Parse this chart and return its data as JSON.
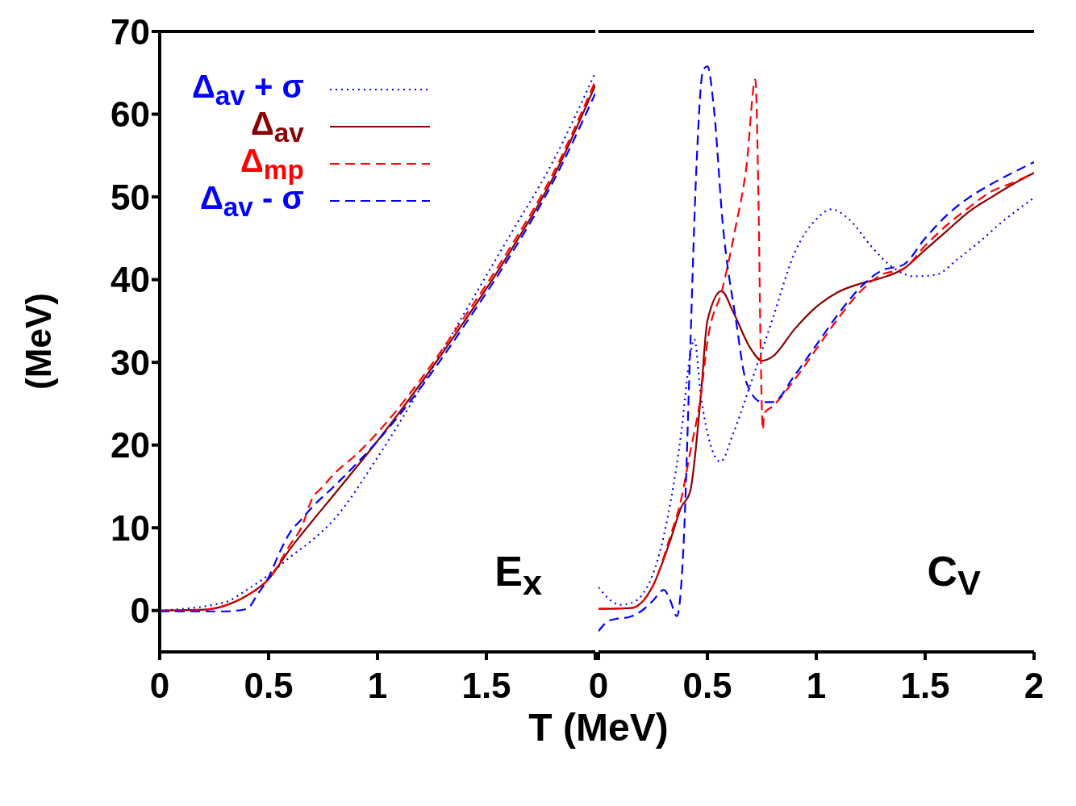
{
  "chart_data": [
    {
      "type": "line",
      "ylabel": "(MeV)",
      "xlabel": "T (MeV)",
      "xlim": [
        0,
        2
      ],
      "xticks": [
        0,
        0.5,
        1,
        1.5,
        {
          "value": 2,
          "label": null
        }
      ],
      "ylim": [
        -5,
        70
      ],
      "yticks": [
        0,
        10,
        20,
        30,
        40,
        50,
        60,
        70
      ],
      "legend": "top left",
      "marker": "none",
      "annotations": [
        "E$_{x}$"
      ],
      "series": [
        {
          "name": "Δ$_{av}$ + σ",
          "color": "#0000ff",
          "line_style": "dotted",
          "x": [
            0,
            0.3,
            0.4,
            0.5,
            0.6,
            0.7,
            0.8,
            1.0,
            1.2,
            1.4,
            1.6,
            1.8,
            2.0
          ],
          "values": [
            0,
            1.0,
            2.5,
            4.3,
            6.5,
            8.5,
            11,
            18.5,
            27,
            36,
            45,
            54,
            65
          ]
        },
        {
          "name": "Δ$_{av}$",
          "color": "#8b0000",
          "line_style": "solid",
          "x": [
            0,
            0.2,
            0.3,
            0.4,
            0.5,
            0.6,
            0.7,
            0.8,
            1.0,
            1.2,
            1.4,
            1.6,
            1.8,
            2.0
          ],
          "values": [
            0,
            0.1,
            0.6,
            1.8,
            3.8,
            7.5,
            10.8,
            14,
            20.5,
            27.5,
            35,
            43,
            52,
            63.5
          ]
        },
        {
          "name": "Δ$_{mp}$",
          "color": "#ff0000",
          "line_style": "dashed",
          "x": [
            0,
            0.2,
            0.3,
            0.4,
            0.5,
            0.6,
            0.65,
            0.7,
            0.75,
            0.8,
            0.9,
            1.0,
            1.2,
            1.4,
            1.6,
            1.8,
            2.0
          ],
          "values": [
            0,
            0.1,
            0.6,
            1.8,
            3.8,
            8,
            10,
            13.5,
            15,
            16.5,
            18.8,
            21.5,
            28,
            35.5,
            43.5,
            52.5,
            64
          ]
        },
        {
          "name": "Δ$_{av}$ - σ",
          "color": "#0000ff",
          "line_style": "dashed",
          "x": [
            0,
            0.3,
            0.4,
            0.45,
            0.5,
            0.55,
            0.6,
            0.65,
            0.7,
            0.8,
            1.0,
            1.2,
            1.4,
            1.6,
            1.8,
            2.0
          ],
          "values": [
            -0.1,
            -0.1,
            0.2,
            2,
            4,
            7,
            9.5,
            11,
            12.5,
            15,
            20.5,
            27,
            34.5,
            42.5,
            51.5,
            62.5
          ]
        }
      ]
    },
    {
      "type": "line",
      "xlim": [
        0,
        2
      ],
      "xticks": [
        0,
        0.5,
        1,
        1.5,
        2
      ],
      "ylim": [
        -5,
        70
      ],
      "yticks": [
        0,
        10,
        20,
        30,
        40,
        50,
        60,
        70
      ],
      "tick_labels": "x",
      "marker": "none",
      "annotations": [
        "C$_{V}$"
      ],
      "series": [
        {
          "color": "#0000ff",
          "line_style": "dotted",
          "x": [
            0,
            0.1,
            0.15,
            0.25,
            0.33,
            0.38,
            0.42,
            0.44,
            0.47,
            0.5,
            0.56,
            0.62,
            0.7,
            0.8,
            0.9,
            1.0,
            1.07,
            1.15,
            1.25,
            1.35,
            1.45,
            1.55,
            1.65,
            1.75,
            1.85,
            2.0
          ],
          "values": [
            2.8,
            0.7,
            0.9,
            4.4,
            13,
            21.5,
            30.7,
            32.8,
            26,
            21.5,
            18,
            21.5,
            27.5,
            35.3,
            43.2,
            47.3,
            48.5,
            47.3,
            44.1,
            41.5,
            40.4,
            40.6,
            42.5,
            44.6,
            46.9,
            49.9
          ]
        },
        {
          "color": "#8b0000",
          "line_style": "solid",
          "x": [
            0,
            0.15,
            0.25,
            0.33,
            0.38,
            0.42,
            0.47,
            0.5,
            0.565,
            0.62,
            0.7,
            0.75,
            0.8,
            0.9,
            1.0,
            1.1,
            1.2,
            1.3,
            1.4,
            1.5,
            1.6,
            1.7,
            1.8,
            1.9,
            2.0
          ],
          "values": [
            0.2,
            0.3,
            3,
            8.5,
            12.5,
            14.3,
            26,
            35,
            38.6,
            36,
            31.6,
            30.2,
            30.7,
            34,
            36.7,
            38.5,
            39.5,
            40.2,
            41.3,
            43.6,
            45.9,
            48.2,
            49.9,
            51.5,
            52.9
          ]
        },
        {
          "color": "#ff0000",
          "line_style": "dashed",
          "x": [
            0,
            0.15,
            0.25,
            0.33,
            0.38,
            0.42,
            0.47,
            0.5,
            0.57,
            0.63,
            0.68,
            0.72,
            0.735,
            0.745,
            0.755,
            0.76,
            0.8,
            0.9,
            1.0,
            1.1,
            1.2,
            1.3,
            1.4,
            1.5,
            1.6,
            1.7,
            1.8,
            1.9,
            2.0
          ],
          "values": [
            0.2,
            0.3,
            3,
            9,
            13.5,
            19,
            26,
            32.5,
            39,
            46.4,
            53.8,
            64.2,
            49,
            30.7,
            21.9,
            23.8,
            24.7,
            27.9,
            31.6,
            35.3,
            38.5,
            40.6,
            41.3,
            44.1,
            46.6,
            48.7,
            50.6,
            51.7,
            52.9
          ]
        },
        {
          "color": "#0000ff",
          "line_style": "dashed",
          "x": [
            0,
            0.05,
            0.15,
            0.2,
            0.25,
            0.3,
            0.33,
            0.36,
            0.39,
            0.42,
            0.45,
            0.48,
            0.5,
            0.53,
            0.57,
            0.63,
            0.68,
            0.75,
            0.8,
            0.9,
            1.0,
            1.1,
            1.2,
            1.3,
            1.4,
            1.5,
            1.6,
            1.7,
            1.8,
            1.9,
            2.0
          ],
          "values": [
            -2.5,
            -1.2,
            -0.7,
            0,
            1.2,
            2.5,
            1.2,
            -0.7,
            7.6,
            30.7,
            53.8,
            65.3,
            65.8,
            60.7,
            46.9,
            35.3,
            27.5,
            25.2,
            25.2,
            28.4,
            32.1,
            35.8,
            39,
            41.1,
            41.8,
            45,
            47.8,
            49.9,
            51.5,
            52.9,
            54.2
          ]
        }
      ]
    }
  ]
}
